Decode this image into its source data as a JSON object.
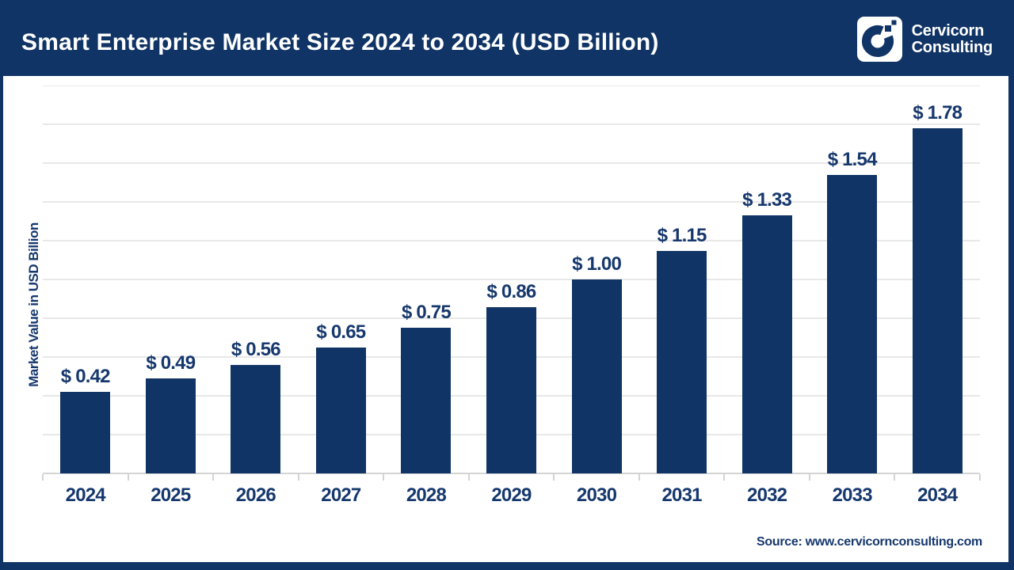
{
  "header": {
    "title": "Smart Enterprise Market Size 2024 to 2034 (USD Billion)",
    "brand": {
      "line1": "Cervicorn",
      "line2": "Consulting"
    }
  },
  "chart_data": {
    "type": "bar",
    "categories": [
      "2024",
      "2025",
      "2026",
      "2027",
      "2028",
      "2029",
      "2030",
      "2031",
      "2032",
      "2033",
      "2034"
    ],
    "values": [
      0.42,
      0.49,
      0.56,
      0.65,
      0.75,
      0.86,
      1.0,
      1.15,
      1.33,
      1.54,
      1.78
    ],
    "value_labels": [
      "$ 0.42",
      "$ 0.49",
      "$ 0.56",
      "$ 0.65",
      "$ 0.75",
      "$ 0.86",
      "$ 1.00",
      "$ 1.15",
      "$ 1.33",
      "$ 1.54",
      "$ 1.78"
    ],
    "title": "Smart Enterprise Market Size 2024 to 2034 (USD Billion)",
    "xlabel": "",
    "ylabel": "Market Value in USD Billion",
    "ylim": [
      0,
      2.0
    ],
    "grid_step": 0.2,
    "grid": "horizontal",
    "legend": "none",
    "bar_color": "#103465",
    "label_color": "#16386d"
  },
  "footer": {
    "source": "Source: www.cervicornconsulting.com"
  }
}
